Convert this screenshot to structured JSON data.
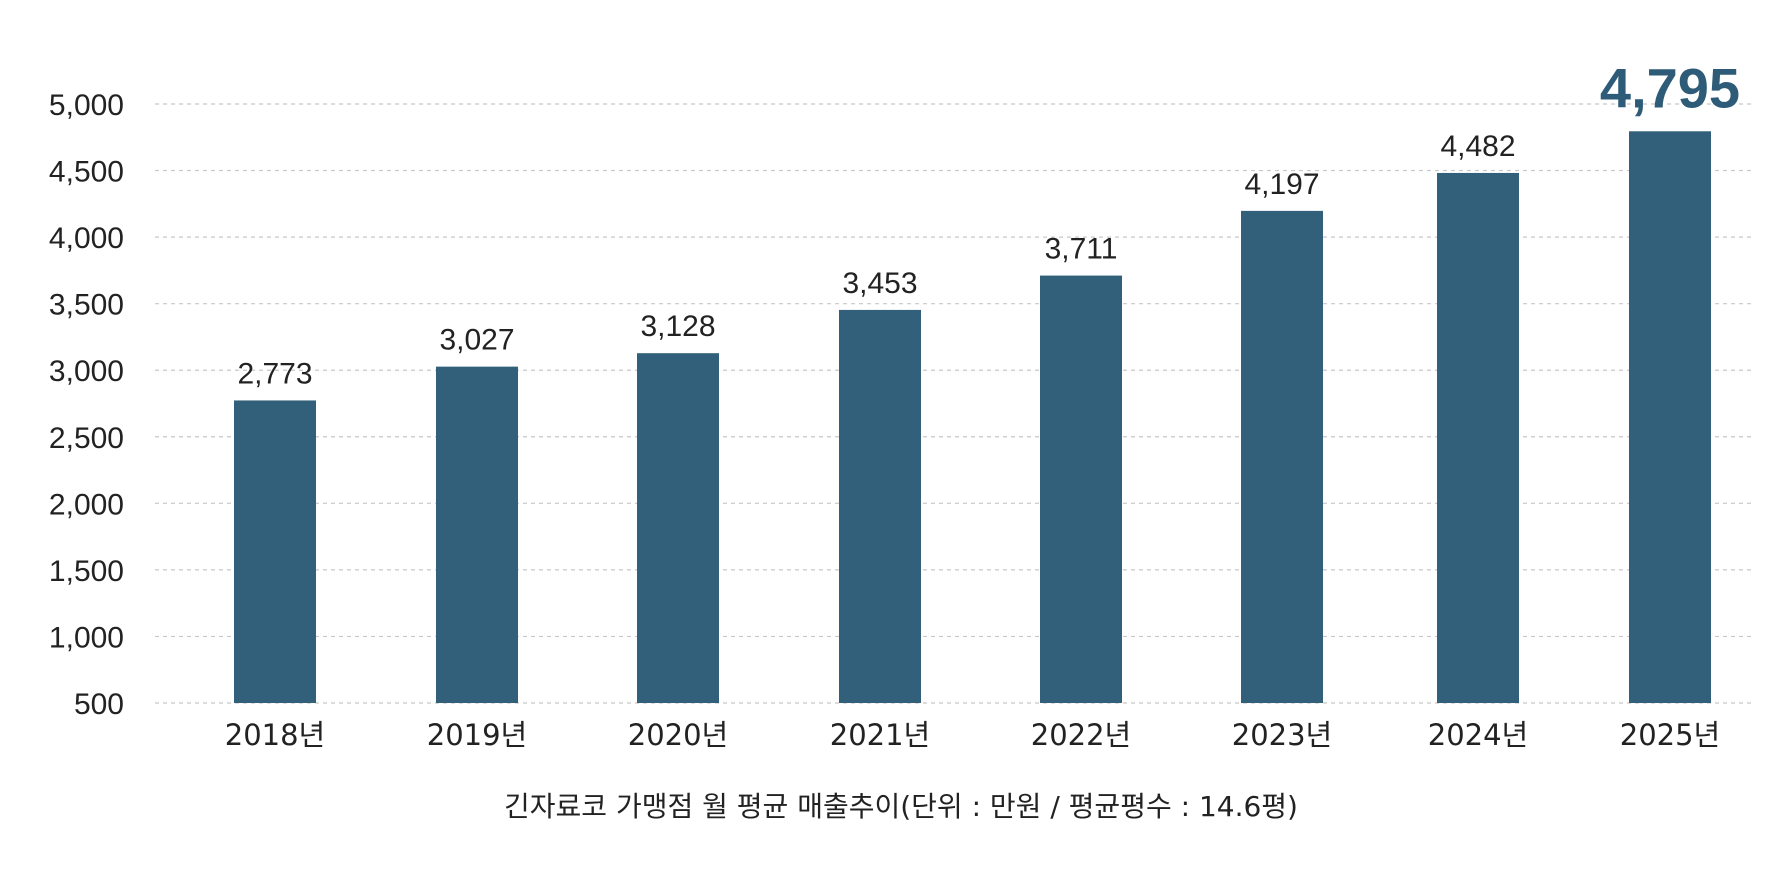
{
  "chart_data": {
    "type": "bar",
    "title": "긴자료코 가맹점 월 평균 매출추이(단위 : 만원 / 평균평수 : 14.6평)",
    "categories": [
      "2018년",
      "2019년",
      "2020년",
      "2021년",
      "2022년",
      "2023년",
      "2024년",
      "2025년"
    ],
    "values": [
      2773,
      3027,
      3128,
      3453,
      3711,
      4197,
      4482,
      4795
    ],
    "value_labels": [
      "2,773",
      "3,027",
      "3,128",
      "3,453",
      "3,711",
      "4,197",
      "4,482",
      "4,795"
    ],
    "highlight_index": 7,
    "ylim": [
      500,
      5000
    ],
    "yticks": [
      500,
      1000,
      1500,
      2000,
      2500,
      3000,
      3500,
      4000,
      4500,
      5000
    ],
    "ytick_labels": [
      "500",
      "1,000",
      "1,500",
      "2,000",
      "2,500",
      "3,000",
      "3,500",
      "4,000",
      "4,500",
      "5,000"
    ],
    "grid": true,
    "legend": "none",
    "colors": {
      "bar": "#32607a",
      "highlight_label": "#2e5b77",
      "text": "#222222",
      "grid": "#c8c8c8"
    }
  }
}
